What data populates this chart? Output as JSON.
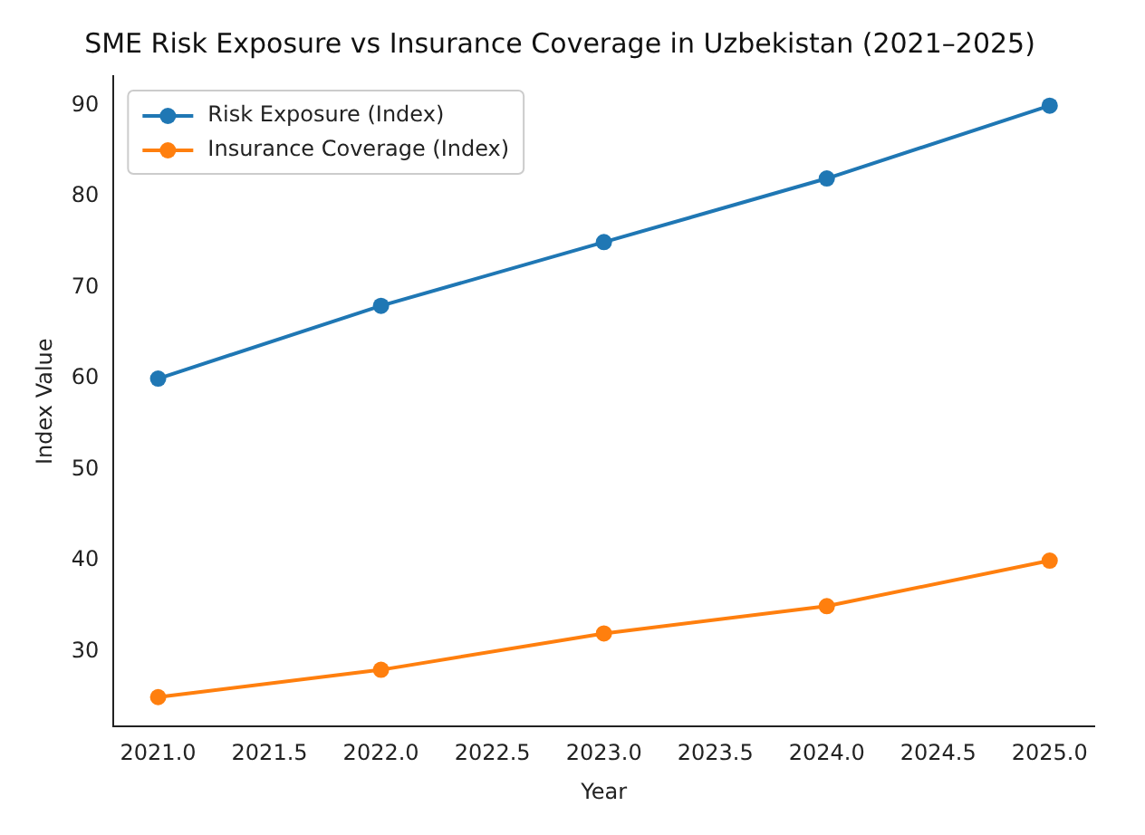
{
  "chart_data": {
    "type": "line",
    "title": "SME Risk Exposure vs Insurance Coverage in Uzbekistan (2021–2025)",
    "xlabel": "Year",
    "ylabel": "Index Value",
    "x": [
      2021,
      2022,
      2023,
      2024,
      2025
    ],
    "series": [
      {
        "name": "Risk Exposure (Index)",
        "color": "#1f77b4",
        "values": [
          60,
          68,
          75,
          82,
          90
        ]
      },
      {
        "name": "Insurance Coverage (Index)",
        "color": "#ff7f0e",
        "values": [
          25,
          28,
          32,
          35,
          40
        ]
      }
    ],
    "xlim": [
      2020.8,
      2025.2
    ],
    "xticks": [
      {
        "value": 2021,
        "label": "2021.0"
      },
      {
        "value": 2021.5,
        "label": "2021.5"
      },
      {
        "value": 2022,
        "label": "2022.0"
      },
      {
        "value": 2022.5,
        "label": "2022.5"
      },
      {
        "value": 2023,
        "label": "2023.0"
      },
      {
        "value": 2023.5,
        "label": "2023.5"
      },
      {
        "value": 2024,
        "label": "2024.0"
      },
      {
        "value": 2024.5,
        "label": "2024.5"
      },
      {
        "value": 2025,
        "label": "2025.0"
      }
    ],
    "ylim": [
      21.75,
      93.25
    ],
    "yticks": [
      30,
      40,
      50,
      60,
      70,
      80,
      90
    ],
    "grid": false,
    "legend": "top left",
    "marker": "circle",
    "line_style": "solid"
  }
}
